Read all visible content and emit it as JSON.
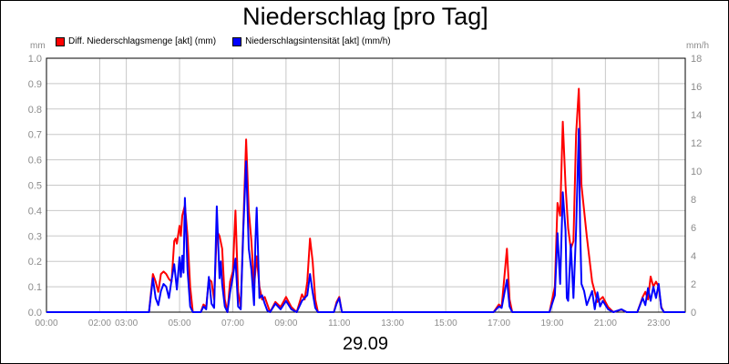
{
  "chart_data": {
    "type": "line",
    "title": "Niederschlag [pro Tag]",
    "date_label": "29.09",
    "left_axis": {
      "unit": "mm",
      "ylim": [
        0,
        1.0
      ],
      "ticks": [
        "0.0",
        "0.1",
        "0.2",
        "0.3",
        "0.4",
        "0.5",
        "0.6",
        "0.7",
        "0.8",
        "0.9",
        "1.0"
      ]
    },
    "right_axis": {
      "unit": "mm/h",
      "ylim": [
        0,
        18
      ],
      "ticks": [
        "0",
        "2",
        "4",
        "6",
        "8",
        "10",
        "12",
        "14",
        "16",
        "18"
      ]
    },
    "x_ticks": [
      {
        "label": "00:00",
        "h": 0
      },
      {
        "label": "02:00",
        "h": 2
      },
      {
        "label": "03:00",
        "h": 3
      },
      {
        "label": "05:00",
        "h": 5
      },
      {
        "label": "07:00",
        "h": 7
      },
      {
        "label": "09:00",
        "h": 9
      },
      {
        "label": "11:00",
        "h": 11
      },
      {
        "label": "13:00",
        "h": 13
      },
      {
        "label": "15:00",
        "h": 15
      },
      {
        "label": "17:00",
        "h": 17
      },
      {
        "label": "19:00",
        "h": 19
      },
      {
        "label": "21:00",
        "h": 21
      },
      {
        "label": "23:00",
        "h": 23
      }
    ],
    "grid": true,
    "legend_position": "top-left",
    "series": [
      {
        "name": "Diff. Niederschlagsmenge [akt] (mm)",
        "axis": "left",
        "color": "#ff0000",
        "points": [
          [
            0,
            0
          ],
          [
            3.85,
            0
          ],
          [
            4.0,
            0.15
          ],
          [
            4.1,
            0.12
          ],
          [
            4.2,
            0.08
          ],
          [
            4.3,
            0.15
          ],
          [
            4.4,
            0.16
          ],
          [
            4.5,
            0.15
          ],
          [
            4.6,
            0.13
          ],
          [
            4.7,
            0.12
          ],
          [
            4.8,
            0.28
          ],
          [
            4.85,
            0.29
          ],
          [
            4.9,
            0.27
          ],
          [
            5.0,
            0.34
          ],
          [
            5.05,
            0.3
          ],
          [
            5.1,
            0.38
          ],
          [
            5.2,
            0.42
          ],
          [
            5.3,
            0.3
          ],
          [
            5.4,
            0.1
          ],
          [
            5.5,
            0.0
          ],
          [
            5.8,
            0.0
          ],
          [
            5.9,
            0.03
          ],
          [
            6.0,
            0.02
          ],
          [
            6.1,
            0.13
          ],
          [
            6.2,
            0.12
          ],
          [
            6.3,
            0.05
          ],
          [
            6.4,
            0.32
          ],
          [
            6.5,
            0.3
          ],
          [
            6.6,
            0.25
          ],
          [
            6.7,
            0.05
          ],
          [
            6.8,
            0.0
          ],
          [
            6.9,
            0.12
          ],
          [
            7.0,
            0.16
          ],
          [
            7.1,
            0.4
          ],
          [
            7.2,
            0.08
          ],
          [
            7.3,
            0.02
          ],
          [
            7.4,
            0.35
          ],
          [
            7.5,
            0.68
          ],
          [
            7.6,
            0.4
          ],
          [
            7.7,
            0.28
          ],
          [
            7.8,
            0.1
          ],
          [
            7.9,
            0.22
          ],
          [
            8.0,
            0.1
          ],
          [
            8.1,
            0.05
          ],
          [
            8.2,
            0.06
          ],
          [
            8.3,
            0.03
          ],
          [
            8.4,
            0.0
          ],
          [
            8.6,
            0.04
          ],
          [
            8.8,
            0.02
          ],
          [
            9.0,
            0.06
          ],
          [
            9.2,
            0.02
          ],
          [
            9.4,
            0.0
          ],
          [
            9.6,
            0.07
          ],
          [
            9.7,
            0.05
          ],
          [
            9.8,
            0.12
          ],
          [
            9.9,
            0.29
          ],
          [
            10.0,
            0.2
          ],
          [
            10.1,
            0.05
          ],
          [
            10.2,
            0.0
          ],
          [
            10.8,
            0.0
          ],
          [
            10.9,
            0.04
          ],
          [
            11.0,
            0.06
          ],
          [
            11.1,
            0.0
          ],
          [
            16.8,
            0.0
          ],
          [
            17.0,
            0.03
          ],
          [
            17.1,
            0.02
          ],
          [
            17.3,
            0.25
          ],
          [
            17.4,
            0.05
          ],
          [
            17.5,
            0.0
          ],
          [
            18.9,
            0.0
          ],
          [
            19.1,
            0.1
          ],
          [
            19.2,
            0.43
          ],
          [
            19.3,
            0.38
          ],
          [
            19.4,
            0.75
          ],
          [
            19.5,
            0.5
          ],
          [
            19.6,
            0.33
          ],
          [
            19.7,
            0.25
          ],
          [
            19.8,
            0.28
          ],
          [
            19.9,
            0.7
          ],
          [
            20.0,
            0.88
          ],
          [
            20.1,
            0.5
          ],
          [
            20.2,
            0.4
          ],
          [
            20.3,
            0.3
          ],
          [
            20.5,
            0.12
          ],
          [
            20.7,
            0.04
          ],
          [
            20.9,
            0.06
          ],
          [
            21.1,
            0.02
          ],
          [
            21.3,
            0.0
          ],
          [
            21.6,
            0.01
          ],
          [
            21.8,
            0.0
          ],
          [
            22.2,
            0.0
          ],
          [
            22.4,
            0.06
          ],
          [
            22.5,
            0.08
          ],
          [
            22.6,
            0.05
          ],
          [
            22.7,
            0.14
          ],
          [
            22.8,
            0.1
          ],
          [
            22.9,
            0.12
          ],
          [
            23.0,
            0.1
          ],
          [
            23.1,
            0.02
          ],
          [
            23.2,
            0.0
          ],
          [
            24,
            0
          ]
        ]
      },
      {
        "name": "Niederschlagsintensität [akt] (mm/h)",
        "axis": "right",
        "color": "#0000ff",
        "points": [
          [
            0,
            0
          ],
          [
            3.85,
            0
          ],
          [
            4.0,
            2.4
          ],
          [
            4.1,
            1.0
          ],
          [
            4.2,
            0.5
          ],
          [
            4.3,
            1.5
          ],
          [
            4.4,
            2.0
          ],
          [
            4.5,
            1.8
          ],
          [
            4.6,
            1.0
          ],
          [
            4.7,
            2.3
          ],
          [
            4.8,
            3.4
          ],
          [
            4.9,
            1.6
          ],
          [
            5.0,
            3.9
          ],
          [
            5.05,
            2.5
          ],
          [
            5.1,
            4.0
          ],
          [
            5.15,
            2.8
          ],
          [
            5.2,
            8.1
          ],
          [
            5.3,
            3.0
          ],
          [
            5.4,
            0.4
          ],
          [
            5.5,
            0.0
          ],
          [
            5.8,
            0.0
          ],
          [
            5.9,
            0.4
          ],
          [
            6.0,
            0.2
          ],
          [
            6.1,
            2.5
          ],
          [
            6.2,
            0.6
          ],
          [
            6.3,
            0.3
          ],
          [
            6.4,
            7.5
          ],
          [
            6.5,
            2.4
          ],
          [
            6.55,
            3.6
          ],
          [
            6.6,
            2.0
          ],
          [
            6.7,
            0.4
          ],
          [
            6.8,
            0.0
          ],
          [
            6.9,
            1.4
          ],
          [
            7.0,
            2.5
          ],
          [
            7.1,
            3.8
          ],
          [
            7.2,
            0.4
          ],
          [
            7.3,
            0.2
          ],
          [
            7.4,
            6.0
          ],
          [
            7.5,
            10.7
          ],
          [
            7.6,
            4.5
          ],
          [
            7.7,
            3.0
          ],
          [
            7.8,
            0.5
          ],
          [
            7.85,
            5.0
          ],
          [
            7.9,
            7.4
          ],
          [
            8.0,
            1.0
          ],
          [
            8.1,
            1.2
          ],
          [
            8.2,
            0.6
          ],
          [
            8.3,
            0.1
          ],
          [
            8.4,
            0.0
          ],
          [
            8.6,
            0.6
          ],
          [
            8.8,
            0.2
          ],
          [
            9.0,
            0.8
          ],
          [
            9.2,
            0.2
          ],
          [
            9.4,
            0.0
          ],
          [
            9.6,
            0.8
          ],
          [
            9.8,
            1.2
          ],
          [
            9.9,
            2.7
          ],
          [
            10.0,
            1.4
          ],
          [
            10.1,
            0.3
          ],
          [
            10.2,
            0.0
          ],
          [
            10.8,
            0.0
          ],
          [
            10.9,
            0.6
          ],
          [
            11.0,
            1.0
          ],
          [
            11.1,
            0.0
          ],
          [
            16.8,
            0.0
          ],
          [
            17.0,
            0.4
          ],
          [
            17.1,
            0.3
          ],
          [
            17.3,
            2.3
          ],
          [
            17.4,
            0.4
          ],
          [
            17.5,
            0.0
          ],
          [
            18.9,
            0.0
          ],
          [
            19.1,
            1.2
          ],
          [
            19.2,
            5.6
          ],
          [
            19.3,
            2.0
          ],
          [
            19.4,
            8.5
          ],
          [
            19.5,
            5.8
          ],
          [
            19.55,
            1.0
          ],
          [
            19.6,
            0.8
          ],
          [
            19.7,
            4.8
          ],
          [
            19.8,
            1.0
          ],
          [
            19.9,
            5.8
          ],
          [
            20.0,
            13.0
          ],
          [
            20.05,
            6.0
          ],
          [
            20.1,
            2.0
          ],
          [
            20.2,
            1.5
          ],
          [
            20.3,
            0.5
          ],
          [
            20.5,
            1.5
          ],
          [
            20.6,
            0.2
          ],
          [
            20.7,
            1.4
          ],
          [
            20.8,
            0.4
          ],
          [
            20.9,
            0.8
          ],
          [
            21.1,
            0.2
          ],
          [
            21.3,
            0.0
          ],
          [
            21.6,
            0.2
          ],
          [
            21.8,
            0.0
          ],
          [
            22.2,
            0.0
          ],
          [
            22.4,
            1.0
          ],
          [
            22.5,
            0.5
          ],
          [
            22.6,
            1.7
          ],
          [
            22.7,
            0.8
          ],
          [
            22.8,
            1.8
          ],
          [
            22.9,
            1.0
          ],
          [
            23.0,
            2.0
          ],
          [
            23.1,
            0.3
          ],
          [
            23.2,
            0.0
          ],
          [
            24,
            0
          ]
        ]
      }
    ]
  }
}
